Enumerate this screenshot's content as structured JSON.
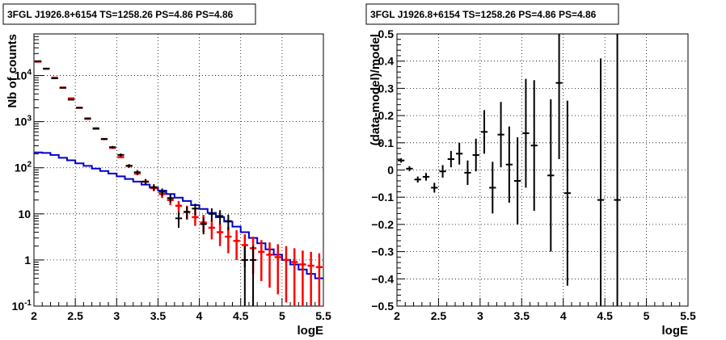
{
  "chart_data": [
    {
      "type": "step+errorbar",
      "title": "3FGL J1926.8+6154 TS=1258.26 PS=4.86 PS=4.86",
      "xlabel": "logE",
      "ylabel": "Nb of counts",
      "xlim": [
        2,
        5.5
      ],
      "ylim": [
        0.1,
        80000
      ],
      "yscale": "log",
      "grid": true,
      "x_ticks": [
        "2",
        "2.5",
        "3",
        "3.5",
        "4",
        "4.5",
        "5",
        "5.5"
      ],
      "y_ticks": [
        "10-1",
        "1",
        "10",
        "102",
        "103",
        "104"
      ],
      "series": [
        {
          "color": "#ff0000",
          "style": "errorbar",
          "points": [
            {
              "x": 2.05,
              "y": 20000,
              "lo": 19800,
              "hi": 20200
            },
            {
              "x": 2.15,
              "y": 14000,
              "lo": 13800,
              "hi": 14200
            },
            {
              "x": 2.25,
              "y": 9000,
              "lo": 8850,
              "hi": 9150
            },
            {
              "x": 2.35,
              "y": 5500,
              "lo": 5400,
              "hi": 5600
            },
            {
              "x": 2.45,
              "y": 3200,
              "lo": 3130,
              "hi": 3270
            },
            {
              "x": 2.55,
              "y": 2000,
              "lo": 1950,
              "hi": 2050
            },
            {
              "x": 2.65,
              "y": 1150,
              "lo": 1120,
              "hi": 1180
            },
            {
              "x": 2.75,
              "y": 700,
              "lo": 680,
              "hi": 720
            },
            {
              "x": 2.85,
              "y": 420,
              "lo": 405,
              "hi": 435
            },
            {
              "x": 2.95,
              "y": 270,
              "lo": 258,
              "hi": 282
            },
            {
              "x": 3.05,
              "y": 170,
              "lo": 161,
              "hi": 179
            },
            {
              "x": 3.15,
              "y": 110,
              "lo": 103,
              "hi": 117
            },
            {
              "x": 3.25,
              "y": 75,
              "lo": 69,
              "hi": 81
            },
            {
              "x": 3.35,
              "y": 50,
              "lo": 45,
              "hi": 55
            },
            {
              "x": 3.45,
              "y": 36,
              "lo": 31,
              "hi": 41
            },
            {
              "x": 3.55,
              "y": 27,
              "lo": 22,
              "hi": 32
            },
            {
              "x": 3.65,
              "y": 20,
              "lo": 15.5,
              "hi": 25
            },
            {
              "x": 3.75,
              "y": 15,
              "lo": 11,
              "hi": 19
            },
            {
              "x": 3.85,
              "y": 11,
              "lo": 7.5,
              "hi": 15
            },
            {
              "x": 3.95,
              "y": 8.5,
              "lo": 5.5,
              "hi": 12
            },
            {
              "x": 4.05,
              "y": 6.5,
              "lo": 4,
              "hi": 9.5
            },
            {
              "x": 4.15,
              "y": 5,
              "lo": 2.8,
              "hi": 7.5
            },
            {
              "x": 4.25,
              "y": 4,
              "lo": 2,
              "hi": 6.2
            },
            {
              "x": 4.35,
              "y": 3.2,
              "lo": 1.4,
              "hi": 5.2
            },
            {
              "x": 4.45,
              "y": 2.6,
              "lo": 1,
              "hi": 4.4
            },
            {
              "x": 4.55,
              "y": 2.1,
              "lo": 0.7,
              "hi": 3.6
            },
            {
              "x": 4.65,
              "y": 1.8,
              "lo": 0.5,
              "hi": 3.2
            },
            {
              "x": 4.75,
              "y": 1.5,
              "lo": 0.35,
              "hi": 2.7
            },
            {
              "x": 4.85,
              "y": 1.3,
              "lo": 0.25,
              "hi": 2.4
            },
            {
              "x": 4.95,
              "y": 1.15,
              "lo": 0.18,
              "hi": 2.2
            },
            {
              "x": 5.05,
              "y": 1.0,
              "lo": 0.12,
              "hi": 2.0
            },
            {
              "x": 5.15,
              "y": 0.9,
              "lo": 0.1,
              "hi": 1.8
            },
            {
              "x": 5.25,
              "y": 0.8,
              "lo": 0.1,
              "hi": 1.6
            },
            {
              "x": 5.35,
              "y": 0.75,
              "lo": 0.1,
              "hi": 1.5
            },
            {
              "x": 5.45,
              "y": 0.7,
              "lo": 0.1,
              "hi": 1.4
            }
          ]
        },
        {
          "color": "#000000",
          "style": "errorbar",
          "points": [
            {
              "x": 2.05,
              "y": 20500,
              "lo": 20350,
              "hi": 20650
            },
            {
              "x": 2.15,
              "y": 14200,
              "lo": 14080,
              "hi": 14320
            },
            {
              "x": 2.25,
              "y": 8700,
              "lo": 8600,
              "hi": 8800
            },
            {
              "x": 2.35,
              "y": 5400,
              "lo": 5320,
              "hi": 5480
            },
            {
              "x": 2.45,
              "y": 3000,
              "lo": 2940,
              "hi": 3060
            },
            {
              "x": 2.55,
              "y": 2000,
              "lo": 1950,
              "hi": 2050
            },
            {
              "x": 2.65,
              "y": 1180,
              "lo": 1145,
              "hi": 1215
            },
            {
              "x": 2.75,
              "y": 720,
              "lo": 693,
              "hi": 747
            },
            {
              "x": 2.85,
              "y": 420,
              "lo": 400,
              "hi": 440
            },
            {
              "x": 2.95,
              "y": 280,
              "lo": 263,
              "hi": 297
            },
            {
              "x": 3.05,
              "y": 190,
              "lo": 176,
              "hi": 204
            },
            {
              "x": 3.15,
              "y": 110,
              "lo": 100,
              "hi": 120
            },
            {
              "x": 3.25,
              "y": 80,
              "lo": 71,
              "hi": 89
            },
            {
              "x": 3.35,
              "y": 50,
              "lo": 43,
              "hi": 57
            },
            {
              "x": 3.45,
              "y": 38,
              "lo": 32,
              "hi": 44
            },
            {
              "x": 3.55,
              "y": 30,
              "lo": 24.5,
              "hi": 35.5
            },
            {
              "x": 3.65,
              "y": 22,
              "lo": 17.5,
              "hi": 26.5
            },
            {
              "x": 3.75,
              "y": 8,
              "lo": 5,
              "hi": 11
            },
            {
              "x": 3.85,
              "y": 11,
              "lo": 7.7,
              "hi": 14.3
            },
            {
              "x": 3.95,
              "y": 13,
              "lo": 9.4,
              "hi": 16.6
            },
            {
              "x": 4.05,
              "y": 6,
              "lo": 3.6,
              "hi": 8.4
            },
            {
              "x": 4.15,
              "y": 10,
              "lo": 6.8,
              "hi": 13.2
            },
            {
              "x": 4.25,
              "y": 9,
              "lo": 6,
              "hi": 12
            },
            {
              "x": 4.35,
              "y": 7,
              "lo": 4.4,
              "hi": 9.6
            },
            {
              "x": 4.55,
              "y": 1,
              "lo": 0.1,
              "hi": 2.0
            },
            {
              "x": 4.65,
              "y": 1,
              "lo": 0.1,
              "hi": 2.0
            }
          ]
        },
        {
          "color": "#0000cc",
          "style": "step",
          "x_edges": [
            2.0,
            2.1,
            2.2,
            2.3,
            2.4,
            2.5,
            2.6,
            2.7,
            2.8,
            2.9,
            3.0,
            3.1,
            3.2,
            3.3,
            3.4,
            3.5,
            3.6,
            3.7,
            3.8,
            3.9,
            4.0,
            4.1,
            4.2,
            4.3,
            4.4,
            4.5,
            4.6,
            4.7,
            4.8,
            4.9,
            5.0,
            5.1,
            5.2,
            5.3,
            5.4,
            5.5
          ],
          "values": [
            215,
            210,
            190,
            165,
            145,
            125,
            110,
            96,
            85,
            75,
            65,
            57,
            50,
            43,
            37,
            32,
            27,
            22.5,
            19,
            15.5,
            12.8,
            10.5,
            8.5,
            6.8,
            5.3,
            4.0,
            3.0,
            2.3,
            1.7,
            1.3,
            1.0,
            0.8,
            0.62,
            0.5,
            0.4
          ]
        }
      ]
    },
    {
      "type": "errorbar",
      "title": "3FGL J1926.8+6154 TS=1258.26 PS=4.86 PS=4.86",
      "xlabel": "logE",
      "ylabel": "(data-model)/model",
      "xlim": [
        2,
        5.5
      ],
      "ylim": [
        -0.5,
        0.5
      ],
      "grid": true,
      "x_ticks": [
        "2",
        "2.5",
        "3",
        "3.5",
        "4",
        "4.5",
        "5",
        "5.5"
      ],
      "y_ticks": [
        "-0.5",
        "-0.4",
        "-0.3",
        "-0.2",
        "-0.1",
        "0",
        "0.1",
        "0.2",
        "0.3",
        "0.4",
        "0.5"
      ],
      "series": [
        {
          "color": "#000000",
          "points": [
            {
              "x": 2.05,
              "y": 0.035,
              "err": 0.008
            },
            {
              "x": 2.15,
              "y": 0.005,
              "err": 0.009
            },
            {
              "x": 2.25,
              "y": -0.035,
              "err": 0.011
            },
            {
              "x": 2.35,
              "y": -0.025,
              "err": 0.014
            },
            {
              "x": 2.45,
              "y": -0.065,
              "err": 0.018
            },
            {
              "x": 2.55,
              "y": -0.005,
              "err": 0.023
            },
            {
              "x": 2.65,
              "y": 0.04,
              "err": 0.03
            },
            {
              "x": 2.75,
              "y": 0.06,
              "err": 0.04
            },
            {
              "x": 2.85,
              "y": -0.01,
              "err": 0.045
            },
            {
              "x": 2.95,
              "y": 0.055,
              "err": 0.06
            },
            {
              "x": 3.05,
              "y": 0.14,
              "err": 0.08
            },
            {
              "x": 3.15,
              "y": -0.065,
              "err": 0.095
            },
            {
              "x": 3.25,
              "y": 0.13,
              "err": 0.12
            },
            {
              "x": 3.35,
              "y": 0.02,
              "err": 0.14
            },
            {
              "x": 3.45,
              "y": -0.04,
              "err": 0.16
            },
            {
              "x": 3.55,
              "y": 0.135,
              "err": 0.2
            },
            {
              "x": 3.65,
              "y": 0.09,
              "err": 0.24
            },
            {
              "x": 3.85,
              "y": -0.02,
              "err": 0.28
            },
            {
              "x": 3.95,
              "y": 0.32,
              "err": 0.28
            },
            {
              "x": 4.05,
              "y": -0.085,
              "err": 0.34
            },
            {
              "x": 4.45,
              "y": -0.11,
              "err": 0.52
            },
            {
              "x": 4.65,
              "y": -0.11,
              "err": 0.7
            }
          ]
        }
      ]
    }
  ]
}
